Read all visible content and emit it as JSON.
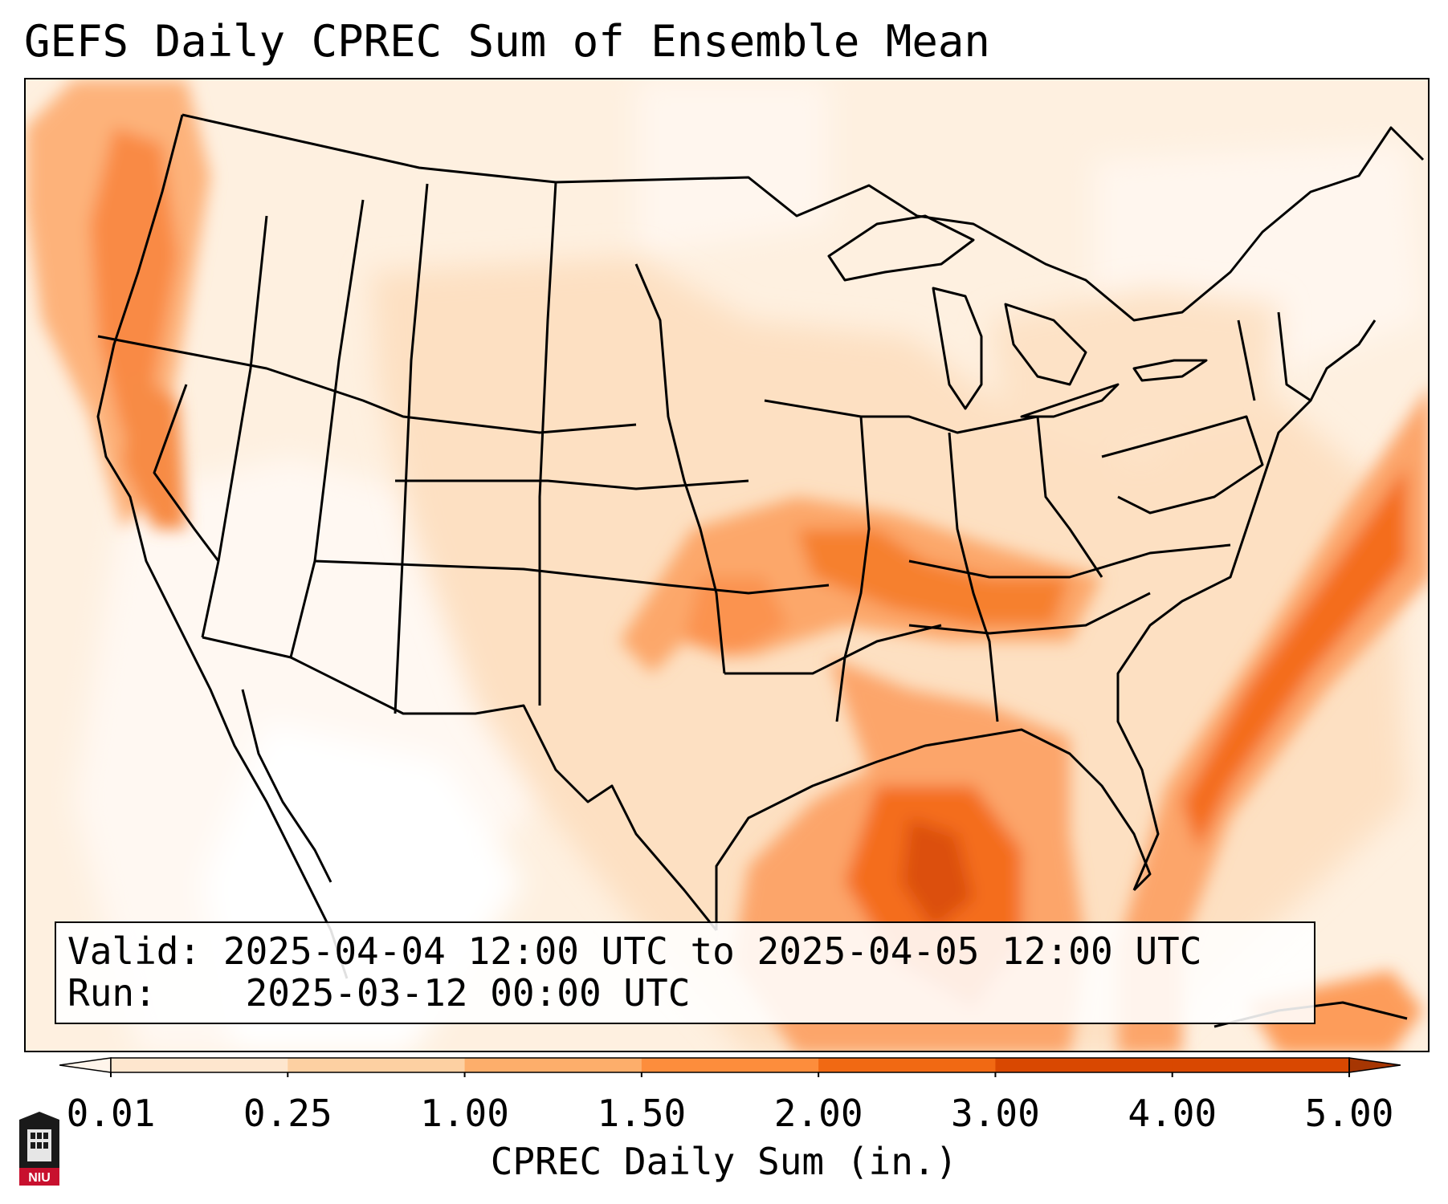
{
  "title": "GEFS Daily CPREC Sum of Ensemble Mean",
  "info": {
    "valid_label": "Valid:",
    "valid_value": "2025-04-04 12:00 UTC to 2025-04-05 12:00 UTC",
    "run_label": "Run:",
    "run_value": "2025-03-12 00:00 UTC"
  },
  "colorbar": {
    "label": "CPREC Daily Sum (in.)",
    "ticks": [
      "0.01",
      "0.25",
      "1.00",
      "1.50",
      "2.00",
      "3.00",
      "4.00",
      "5.00"
    ],
    "colors": [
      "#fff5eb",
      "#fee6ce",
      "#fdd0a2",
      "#fdae6b",
      "#fd8d3c",
      "#f16913",
      "#d94801",
      "#a63603"
    ],
    "extend": "both"
  },
  "map": {
    "projection": "Lambert conformal",
    "region": "Contiguous United States",
    "field": "CPREC daily sum, ensemble mean",
    "colors": {
      "background": "#fff7ee",
      "outline": "#000000"
    }
  },
  "logo": {
    "text": "NIU",
    "colors": {
      "shield": "#1a1a1a",
      "band": "#c8102e"
    }
  }
}
